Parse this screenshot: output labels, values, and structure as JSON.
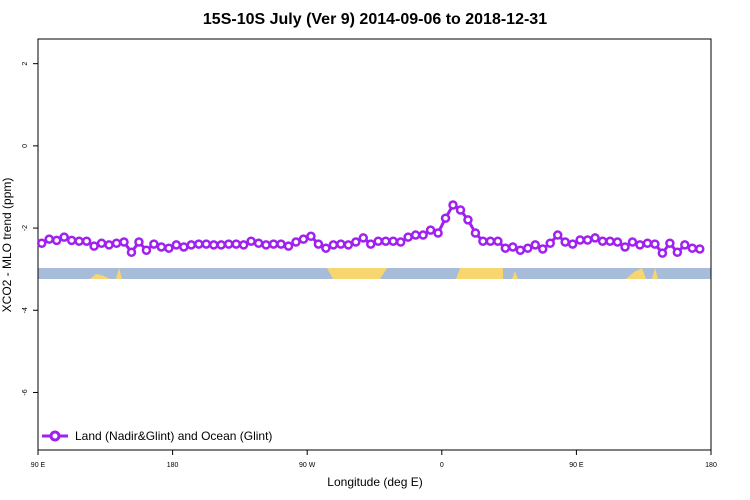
{
  "chart_data": {
    "type": "line",
    "title": "15S-10S July (Ver 9)   2014-09-06 to 2018-12-31",
    "x_label": "Longitude (deg E)",
    "y_label": "XCO2 - MLO trend (ppm)",
    "xlim": [
      90,
      540
    ],
    "ylim": [
      -7.4,
      2.6
    ],
    "xticks": [
      {
        "value": 90,
        "label": "90 E"
      },
      180,
      {
        "value": 270,
        "label": "90 W"
      },
      {
        "value": 360,
        "label": "0"
      },
      {
        "value": 450,
        "label": "90 E"
      },
      {
        "value": 540,
        "label": "180"
      }
    ],
    "yticks": [
      -6,
      -4,
      -2,
      0,
      2
    ],
    "legend": "bottom-left",
    "x": [
      92.5,
      97.5,
      102.5,
      107.5,
      112.5,
      117.5,
      122.5,
      127.5,
      132.5,
      137.5,
      142.5,
      147.5,
      152.5,
      157.5,
      162.5,
      167.5,
      172.5,
      177.5,
      182.5,
      187.5,
      192.5,
      197.5,
      202.5,
      207.5,
      212.5,
      217.5,
      222.5,
      227.5,
      232.5,
      237.5,
      242.5,
      247.5,
      252.5,
      257.5,
      262.5,
      267.5,
      272.5,
      277.5,
      282.5,
      287.5,
      292.5,
      297.5,
      302.5,
      307.5,
      312.5,
      317.5,
      322.5,
      327.5,
      332.5,
      337.5,
      342.5,
      347.5,
      352.5,
      357.5,
      362.5,
      367.5,
      372.5,
      377.5,
      382.5,
      387.5,
      392.5,
      397.5,
      402.5,
      407.5,
      412.5,
      417.5,
      422.5,
      427.5,
      432.5,
      437.5,
      442.5,
      447.5,
      452.5,
      457.5,
      462.5,
      467.5,
      472.5,
      477.5,
      482.5,
      487.5,
      492.5,
      497.5,
      502.5,
      507.5,
      512.5,
      517.5,
      522.5,
      527.5,
      532.5
    ],
    "series": [
      {
        "name": "Land (Nadir&Glint) and Ocean (Glint)",
        "color": "#a020f0",
        "values": [
          -2.37,
          -2.27,
          -2.3,
          -2.22,
          -2.3,
          -2.32,
          -2.32,
          -2.44,
          -2.37,
          -2.41,
          -2.37,
          -2.34,
          -2.59,
          -2.34,
          -2.54,
          -2.39,
          -2.46,
          -2.49,
          -2.41,
          -2.46,
          -2.41,
          -2.39,
          -2.39,
          -2.41,
          -2.41,
          -2.39,
          -2.39,
          -2.41,
          -2.32,
          -2.37,
          -2.41,
          -2.39,
          -2.39,
          -2.44,
          -2.34,
          -2.27,
          -2.2,
          -2.39,
          -2.49,
          -2.41,
          -2.39,
          -2.41,
          -2.34,
          -2.24,
          -2.39,
          -2.32,
          -2.32,
          -2.32,
          -2.34,
          -2.22,
          -2.17,
          -2.17,
          -2.05,
          -2.12,
          -1.76,
          -1.44,
          -1.56,
          -1.8,
          -2.12,
          -2.32,
          -2.32,
          -2.32,
          -2.49,
          -2.46,
          -2.54,
          -2.49,
          -2.41,
          -2.51,
          -2.37,
          -2.17,
          -2.34,
          -2.39,
          -2.29,
          -2.29,
          -2.24,
          -2.32,
          -2.32,
          -2.34,
          -2.46,
          -2.34,
          -2.41,
          -2.37,
          -2.39,
          -2.61,
          -2.37,
          -2.59,
          -2.41,
          -2.49,
          -2.51
        ]
      }
    ]
  }
}
